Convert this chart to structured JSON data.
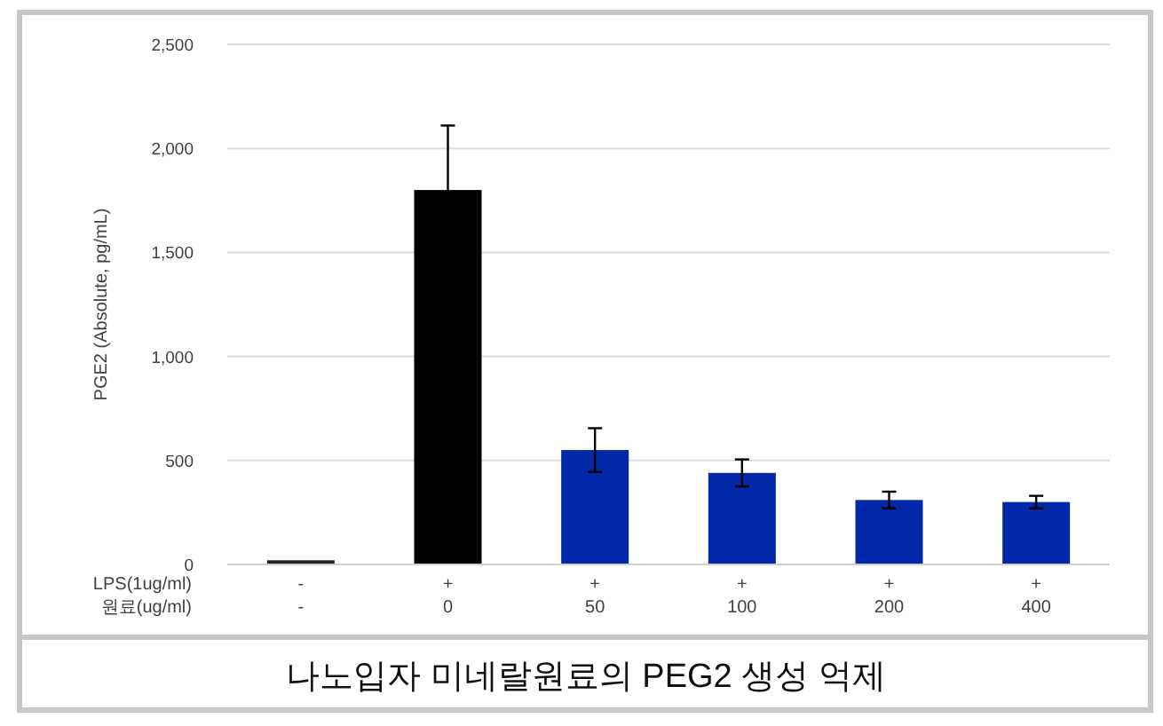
{
  "chart_data": {
    "type": "bar",
    "title": "나노입자 미네랄원료의 PEG2 생성 억제",
    "ylabel": "PGE2 (Absolute, pg/mL)",
    "categories": [
      "-",
      "0",
      "50",
      "100",
      "200",
      "400"
    ],
    "values": [
      20,
      1800,
      550,
      440,
      310,
      300
    ],
    "errors": [
      null,
      310,
      105,
      65,
      40,
      30
    ],
    "colors": [
      "#202020",
      "#000000",
      "#0028a8",
      "#0028a8",
      "#0028a8",
      "#0028a8"
    ],
    "ylim": [
      0,
      2500
    ],
    "yticks": [
      {
        "value": 0,
        "label": "0"
      },
      {
        "value": 500,
        "label": "500"
      },
      {
        "value": 1000,
        "label": "1,000"
      },
      {
        "value": 1500,
        "label": "1,500"
      },
      {
        "value": 2000,
        "label": "2,000"
      },
      {
        "value": 2500,
        "label": "2,500"
      }
    ],
    "grid": "y",
    "annotations": [
      "LPS(1ug/ml)",
      "원료(ug/ml)",
      "-",
      "+",
      "+",
      "+",
      "+",
      "+"
    ]
  }
}
